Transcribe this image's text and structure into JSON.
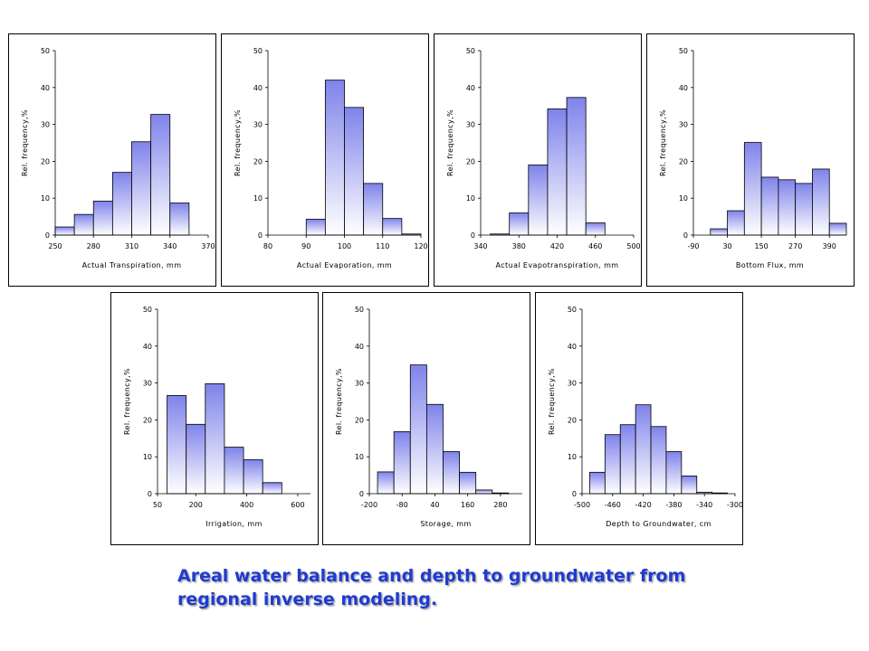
{
  "caption": "Areal water balance and depth to groundwater from regional inverse modeling.",
  "colors": {
    "bar_top": "#7f83ea",
    "bar_bottom": "#ffffff",
    "bar_stroke": "#000000"
  },
  "chart_data": [
    {
      "type": "bar",
      "xlabel": "Actual Transpiration, mm",
      "ylabel": "Rel. frequency,%",
      "ylim": [
        0,
        50
      ],
      "yticks": [
        0,
        10,
        20,
        30,
        40,
        50
      ],
      "xlim": [
        250,
        370
      ],
      "xticks": [
        250,
        280,
        310,
        340,
        370
      ],
      "bin_width": 15,
      "bins": [
        {
          "x": 257.5,
          "value": 2.2
        },
        {
          "x": 272.5,
          "value": 5.6
        },
        {
          "x": 287.5,
          "value": 9.2
        },
        {
          "x": 302.5,
          "value": 17
        },
        {
          "x": 317.5,
          "value": 25.3
        },
        {
          "x": 332.5,
          "value": 32.7
        },
        {
          "x": 347.5,
          "value": 8.7
        }
      ]
    },
    {
      "type": "bar",
      "xlabel": "Actual Evaporation, mm",
      "ylabel": "Rel. frequency,%",
      "ylim": [
        0,
        50
      ],
      "yticks": [
        0,
        10,
        20,
        30,
        40,
        50
      ],
      "xlim": [
        80,
        120
      ],
      "xticks": [
        80,
        90,
        100,
        110,
        120
      ],
      "bin_width": 5,
      "bins": [
        {
          "x": 92.5,
          "value": 4.3
        },
        {
          "x": 97.5,
          "value": 42
        },
        {
          "x": 102.5,
          "value": 34.6
        },
        {
          "x": 107.5,
          "value": 14
        },
        {
          "x": 112.5,
          "value": 4.5
        },
        {
          "x": 117.5,
          "value": 0.3
        }
      ]
    },
    {
      "type": "bar",
      "xlabel": "Actual Evapotranspiration, mm",
      "ylabel": "Rel. frequency,%",
      "ylim": [
        0,
        50
      ],
      "yticks": [
        0,
        10,
        20,
        30,
        40,
        50
      ],
      "xlim": [
        340,
        500
      ],
      "xticks": [
        340,
        380,
        420,
        460,
        500
      ],
      "bin_width": 20,
      "bins": [
        {
          "x": 360,
          "value": 0.3
        },
        {
          "x": 380,
          "value": 6
        },
        {
          "x": 400,
          "value": 19
        },
        {
          "x": 420,
          "value": 34.2
        },
        {
          "x": 440,
          "value": 37.3
        },
        {
          "x": 460,
          "value": 3.3
        }
      ]
    },
    {
      "type": "bar",
      "xlabel": "Bottom Flux, mm",
      "ylabel": "Rel. frequency,%",
      "ylim": [
        0,
        50
      ],
      "yticks": [
        0,
        10,
        20,
        30,
        40,
        50
      ],
      "xlim": [
        -90,
        450
      ],
      "xticks": [
        -90,
        30,
        150,
        270,
        390
      ],
      "bin_width": 60,
      "bins": [
        {
          "x": 0,
          "value": 1.7
        },
        {
          "x": 60,
          "value": 6.6
        },
        {
          "x": 120,
          "value": 25.1
        },
        {
          "x": 180,
          "value": 15.7
        },
        {
          "x": 240,
          "value": 15
        },
        {
          "x": 300,
          "value": 14
        },
        {
          "x": 360,
          "value": 17.9
        },
        {
          "x": 420,
          "value": 3.2
        }
      ]
    },
    {
      "type": "bar",
      "xlabel": "Irrigation, mm",
      "ylabel": "Rel. frequency,%",
      "ylim": [
        0,
        50
      ],
      "yticks": [
        0,
        10,
        20,
        30,
        40,
        50
      ],
      "xlim": [
        50,
        650
      ],
      "xticks": [
        50,
        200,
        400,
        600
      ],
      "bin_width": 75,
      "bins": [
        {
          "x": 125,
          "value": 26.6
        },
        {
          "x": 200,
          "value": 18.8
        },
        {
          "x": 275,
          "value": 29.8
        },
        {
          "x": 350,
          "value": 12.6
        },
        {
          "x": 425,
          "value": 9.2
        },
        {
          "x": 500,
          "value": 3
        }
      ]
    },
    {
      "type": "bar",
      "xlabel": "Storage, mm",
      "ylabel": "Rel. frequency,%",
      "ylim": [
        0,
        50
      ],
      "yticks": [
        0,
        10,
        20,
        30,
        40,
        50
      ],
      "xlim": [
        -200,
        360
      ],
      "xticks": [
        -200,
        -80,
        40,
        160,
        280
      ],
      "bin_width": 60,
      "bins": [
        {
          "x": -140,
          "value": 5.9
        },
        {
          "x": -80,
          "value": 16.8
        },
        {
          "x": -20,
          "value": 34.9
        },
        {
          "x": 40,
          "value": 24.2
        },
        {
          "x": 100,
          "value": 11.4
        },
        {
          "x": 160,
          "value": 5.8
        },
        {
          "x": 220,
          "value": 1
        },
        {
          "x": 280,
          "value": 0.2
        }
      ]
    },
    {
      "type": "bar",
      "xlabel": "Depth to Groundwater, cm",
      "ylabel": "Rel. frequency,%",
      "ylim": [
        0,
        50
      ],
      "yticks": [
        0,
        10,
        20,
        30,
        40,
        50
      ],
      "xlim": [
        -500,
        -300
      ],
      "xticks": [
        -500,
        -460,
        -420,
        -380,
        -340,
        -300
      ],
      "bin_width": 20,
      "bins": [
        {
          "x": -480,
          "value": 5.8
        },
        {
          "x": -460,
          "value": 16
        },
        {
          "x": -440,
          "value": 18.7
        },
        {
          "x": -420,
          "value": 24.1
        },
        {
          "x": -400,
          "value": 18.2
        },
        {
          "x": -380,
          "value": 11.4
        },
        {
          "x": -360,
          "value": 4.8
        },
        {
          "x": -340,
          "value": 0.4
        },
        {
          "x": -320,
          "value": 0.2
        }
      ]
    }
  ]
}
